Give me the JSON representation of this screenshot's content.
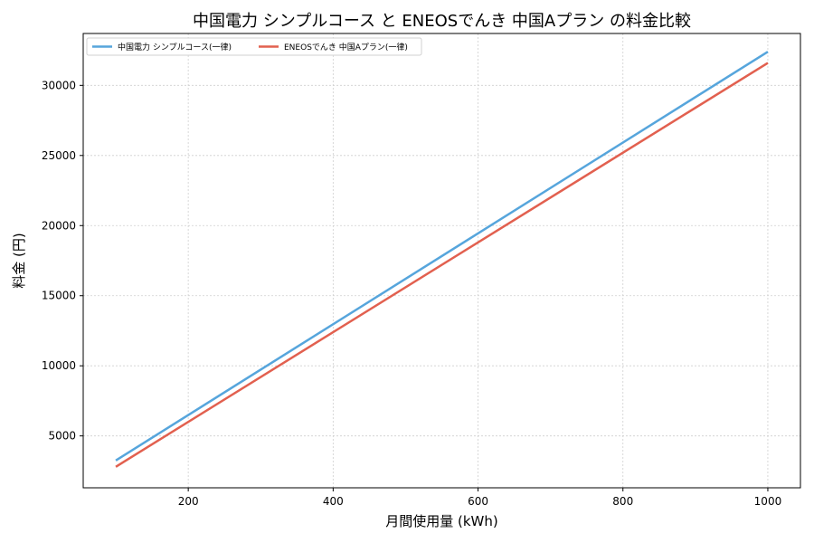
{
  "chart_data": {
    "type": "line",
    "title": "中国電力 シンプルコース と ENEOSでんき 中国Aプラン の料金比較",
    "xlabel": "月間使用量 (kWh)",
    "ylabel": "料金 (円)",
    "xlim": [
      55,
      1045
    ],
    "ylim": [
      1300,
      33700
    ],
    "xticks": [
      200,
      400,
      600,
      800,
      1000
    ],
    "yticks": [
      5000,
      10000,
      15000,
      20000,
      25000,
      30000
    ],
    "grid": true,
    "legend_position": "top-left",
    "series": [
      {
        "name": "中国電力 シンプルコース(一律)",
        "color": "#56a5dc",
        "x": [
          100,
          1000
        ],
        "y": [
          3250,
          32400
        ]
      },
      {
        "name": "ENEOSでんき 中国Aプラン(一律)",
        "color": "#e2604f",
        "x": [
          100,
          1000
        ],
        "y": [
          2800,
          31600
        ]
      }
    ]
  }
}
